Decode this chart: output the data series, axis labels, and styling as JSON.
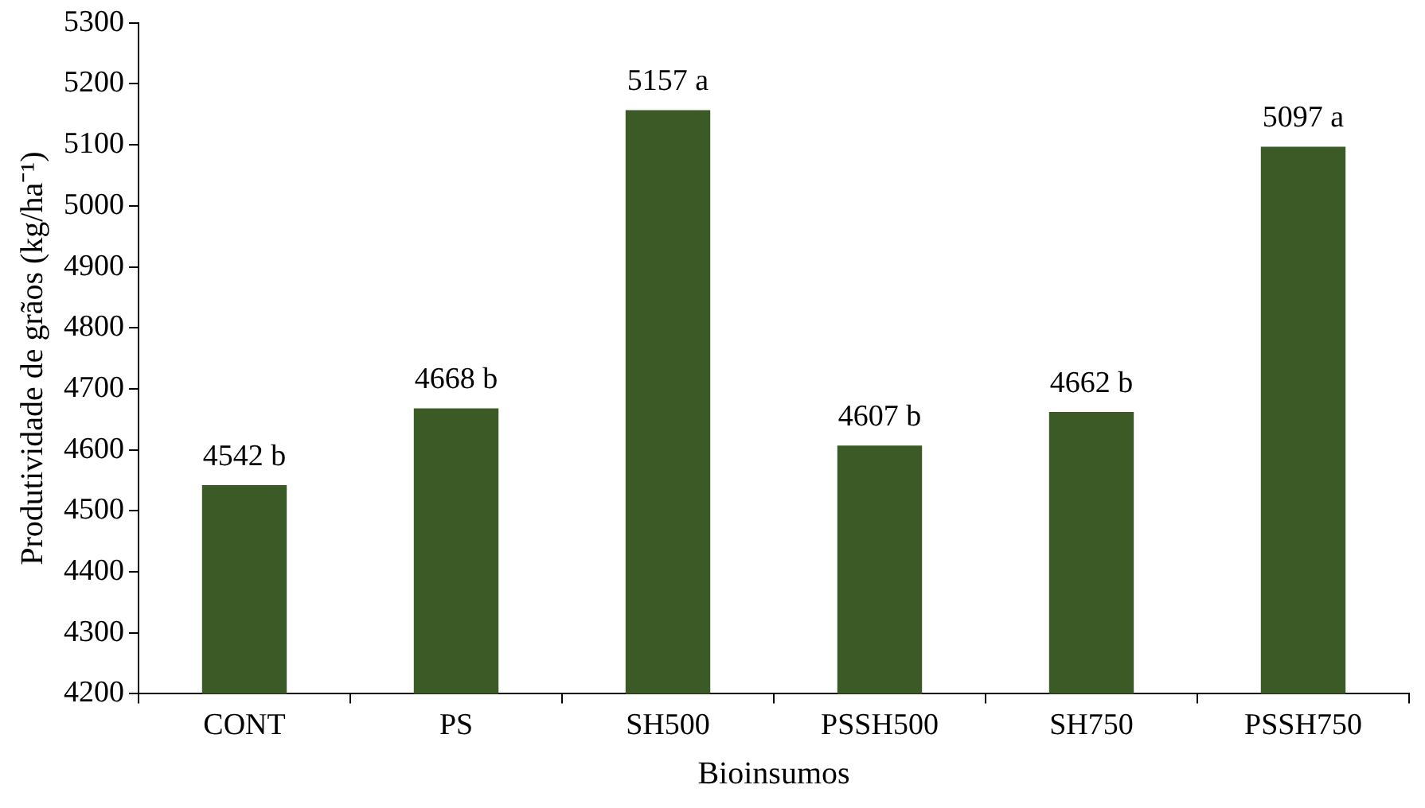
{
  "chart_data": {
    "type": "bar",
    "xlabel": "Bioinsumos",
    "ylabel": "Produtividade de grãos (kg/ha⁻¹)",
    "categories": [
      "CONT",
      "PS",
      "SH500",
      "PSSH500",
      "SH750",
      "PSSH750"
    ],
    "values": [
      4542,
      4668,
      5157,
      4607,
      4662,
      5097
    ],
    "value_labels": [
      "4542 b",
      "4668 b",
      "5157 a",
      "4607 b",
      "4662 b",
      "5097 a"
    ],
    "color": "#3b5a25",
    "ylim": [
      4200,
      5300
    ],
    "yticks": [
      4200,
      4300,
      4400,
      4500,
      4600,
      4700,
      4800,
      4900,
      5000,
      5100,
      5200,
      5300
    ]
  }
}
